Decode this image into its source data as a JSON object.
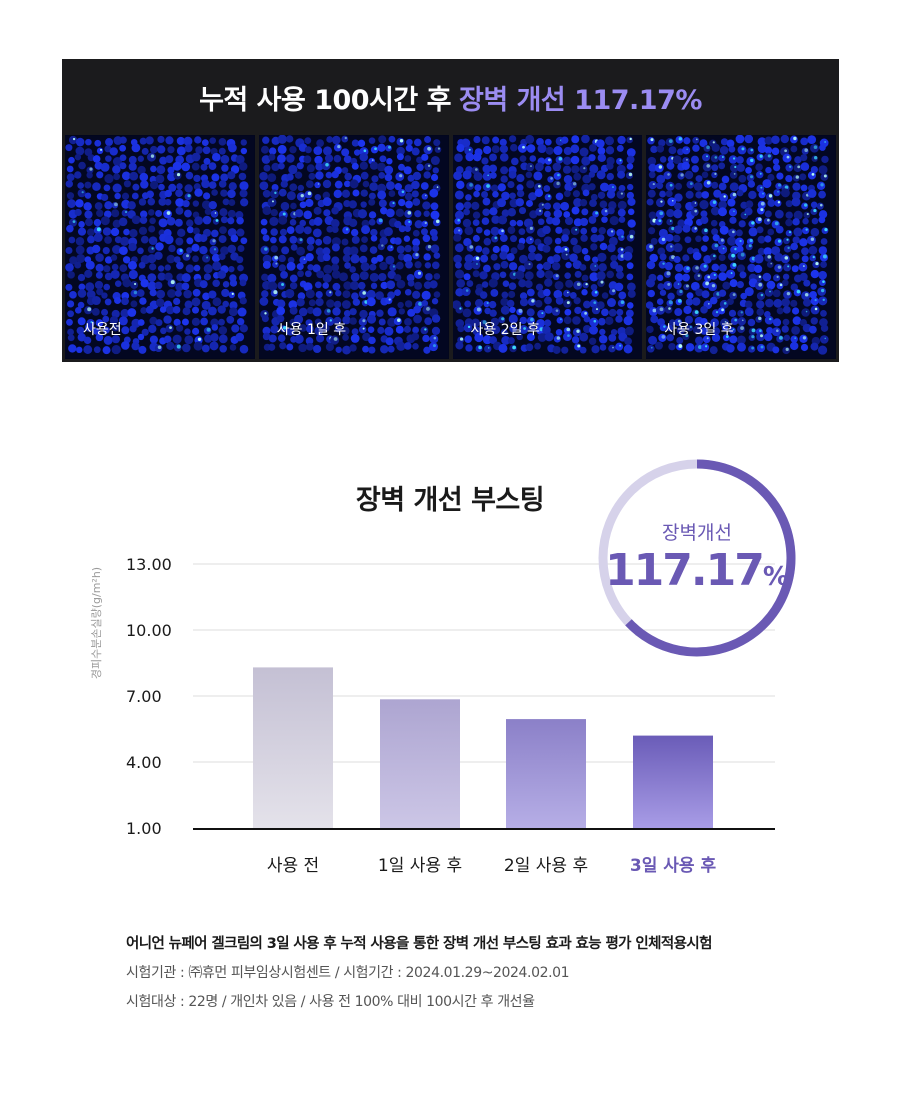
{
  "panel": {
    "title_main": "누적 사용 100시간 후",
    "title_highlight": "장벽 개선 117.17%",
    "images": [
      {
        "label": "사용전",
        "density": 0.15
      },
      {
        "label": "사용 1일 후",
        "density": 0.35
      },
      {
        "label": "사용 2일 후",
        "density": 0.6
      },
      {
        "label": "사용 3일 후",
        "density": 0.9
      }
    ]
  },
  "chart_data": {
    "type": "bar",
    "title": "장벽 개선 부스팅",
    "ylabel": "경피수분손실량(g/m²h)",
    "categories": [
      "사용 전",
      "1일 사용 후",
      "2일 사용 후",
      "3일 사용 후"
    ],
    "values": [
      8.3,
      6.85,
      5.95,
      5.2
    ],
    "ylim": [
      1.0,
      13.0
    ],
    "yticks": [
      "13.00",
      "10.00",
      "7.00",
      "4.00",
      "1.00"
    ],
    "ytick_values": [
      13,
      10,
      7,
      4,
      1
    ],
    "highlight_index": 3,
    "grid": true
  },
  "badge": {
    "label": "장벽개선",
    "value": "117.17",
    "unit": "%"
  },
  "colors": {
    "accent": "#6a59b4",
    "title_highlight": "#9b8cf2",
    "bar_top": [
      "#c4c0d4",
      "#ada5d1",
      "#8b80c8",
      "#6a5cb8"
    ],
    "bar_bottom": [
      "#e4e2ea",
      "#ccc6e6",
      "#b6aee6",
      "#a89ce6"
    ]
  },
  "notes": {
    "headline": "어니언 뉴페어 겔크림의 3일 사용 후 누적 사용을 통한 장벽 개선 부스팅 효과 효능 평가 인체적용시험",
    "line1": "시험기관 : ㈜휴먼 피부임상시험센트 / 시험기간 : 2024.01.29~2024.02.01",
    "line2": "시험대상 : 22명 / 개인차 있음 / 사용 전 100% 대비 100시간 후 개선율"
  }
}
